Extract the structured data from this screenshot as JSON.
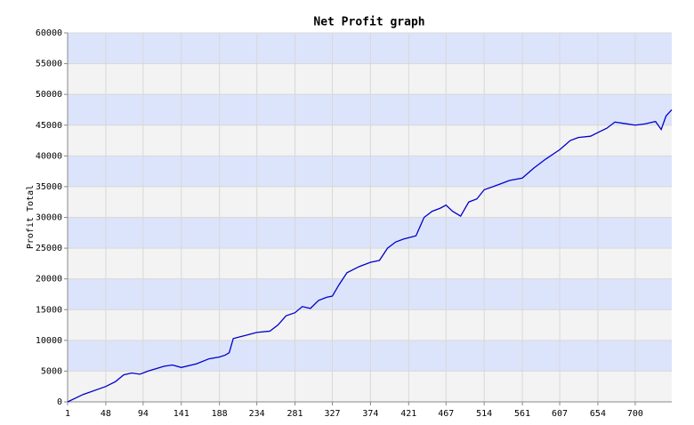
{
  "chart_data": {
    "type": "line",
    "title": "Net Profit graph",
    "y_label": "Profit Total",
    "x": [
      1,
      20,
      48,
      60,
      70,
      80,
      90,
      100,
      110,
      120,
      130,
      141,
      160,
      175,
      188,
      195,
      200,
      205,
      220,
      234,
      250,
      260,
      270,
      281,
      290,
      300,
      310,
      320,
      327,
      335,
      345,
      360,
      374,
      385,
      395,
      405,
      415,
      421,
      430,
      440,
      450,
      460,
      467,
      475,
      485,
      495,
      505,
      514,
      525,
      535,
      545,
      561,
      575,
      590,
      607,
      620,
      630,
      645,
      654,
      665,
      675,
      685,
      700,
      712,
      725,
      732,
      738,
      745
    ],
    "series": [
      {
        "name": "Profit Total",
        "color": "#0000cc",
        "values": [
          0,
          1200,
          2500,
          3300,
          4400,
          4700,
          4500,
          5000,
          5400,
          5800,
          6000,
          5600,
          6200,
          7000,
          7300,
          7600,
          8000,
          10300,
          10800,
          11300,
          11500,
          12500,
          14000,
          14500,
          15500,
          15200,
          16500,
          17000,
          17200,
          19000,
          21000,
          22000,
          22700,
          23000,
          25000,
          26000,
          26500,
          26700,
          27000,
          30000,
          31000,
          31500,
          32000,
          31000,
          30200,
          32500,
          33000,
          34500,
          35000,
          35500,
          36000,
          36400,
          38000,
          39500,
          41000,
          42500,
          43000,
          43200,
          43800,
          44500,
          45500,
          45300,
          45000,
          45200,
          45600,
          44300,
          46500,
          47500
        ]
      }
    ],
    "xlim": [
      1,
      745
    ],
    "xticks": [
      1,
      48,
      94,
      141,
      188,
      234,
      281,
      327,
      374,
      421,
      467,
      514,
      561,
      607,
      654,
      700
    ],
    "ylim": [
      0,
      60000
    ],
    "yticks": [
      0,
      5000,
      10000,
      15000,
      20000,
      25000,
      30000,
      35000,
      40000,
      45000,
      50000,
      55000,
      60000
    ],
    "grid": true,
    "band_colors": [
      "#f3f3f3",
      "#dce4fb"
    ]
  }
}
